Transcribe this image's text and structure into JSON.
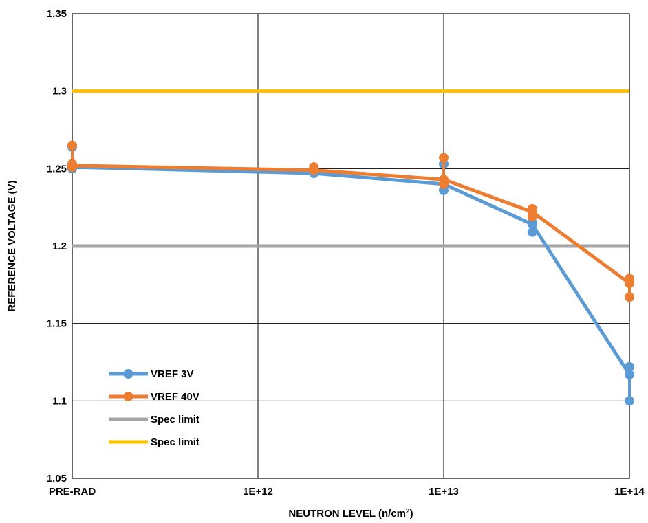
{
  "chart_data": {
    "type": "line",
    "title": "",
    "xlabel": "NEUTRON LEVEL (n/cm",
    "xlabel_superscript": "2",
    "xlabel_suffix": ")",
    "ylabel": "REFERENCE VOLTAGE (V)",
    "x_tick_labels": [
      "PRE-RAD",
      "1E+12",
      "1E+13",
      "1E+14"
    ],
    "y_tick_labels": [
      "1.05",
      "1.1",
      "1.15",
      "1.2",
      "1.25",
      "1.3",
      "1.35"
    ],
    "ylim": [
      1.05,
      1.35
    ],
    "y_ticks": [
      1.05,
      1.1,
      1.15,
      1.2,
      1.25,
      1.3,
      1.35
    ],
    "x_axis": "categorical log-spaced (PRE-RAD, then decades 1E+12 to 1E+14)",
    "grid": true,
    "legend_position": "lower-left inside plot",
    "series": [
      {
        "name": "VREF 3V",
        "color": "#5B9BD5",
        "points": [
          {
            "x": "PRE-RAD",
            "y": [
              1.25,
              1.252,
              1.264
            ]
          },
          {
            "x": "2E+12",
            "y": [
              1.247,
              1.248,
              1.249
            ]
          },
          {
            "x": "1E+13",
            "y": [
              1.236,
              1.24,
              1.253
            ]
          },
          {
            "x": "3E+13",
            "y": [
              1.209,
              1.214,
              1.215
            ]
          },
          {
            "x": "1E+14",
            "y": [
              1.1,
              1.117,
              1.122
            ]
          }
        ],
        "line": [
          1.251,
          1.247,
          1.24,
          1.214,
          1.117
        ]
      },
      {
        "name": "VREF 40V",
        "color": "#ED7D31",
        "points": [
          {
            "x": "PRE-RAD",
            "y": [
              1.251,
              1.253,
              1.265
            ]
          },
          {
            "x": "2E+12",
            "y": [
              1.249,
              1.25,
              1.251
            ]
          },
          {
            "x": "1E+13",
            "y": [
              1.24,
              1.243,
              1.257
            ]
          },
          {
            "x": "3E+13",
            "y": [
              1.219,
              1.222,
              1.224
            ]
          },
          {
            "x": "1E+14",
            "y": [
              1.167,
              1.176,
              1.179
            ]
          }
        ],
        "line": [
          1.252,
          1.249,
          1.243,
          1.222,
          1.176
        ]
      },
      {
        "name": "Spec limit",
        "color": "#A5A5A5",
        "constant": 1.2
      },
      {
        "name": "Spec limit",
        "color": "#FFC000",
        "constant": 1.3
      }
    ]
  }
}
